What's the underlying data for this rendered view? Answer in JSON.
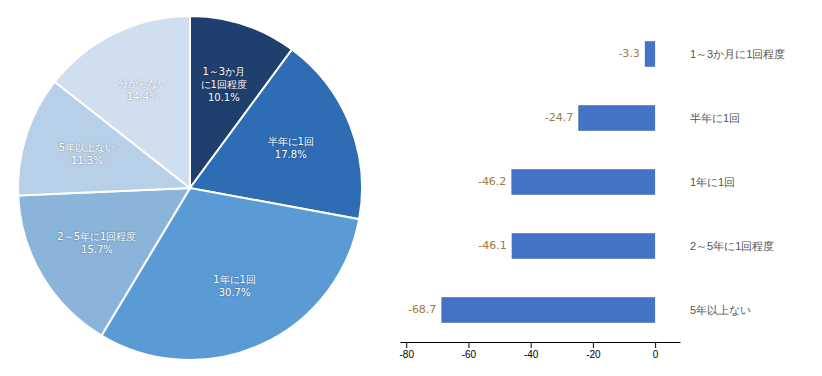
{
  "chart_data": [
    {
      "type": "pie",
      "categories": [
        "1～3か月\nに1回程度",
        "半年に1回",
        "1年に1回",
        "2～5年に1回程度",
        "5年以上ない",
        "分からない"
      ],
      "values": [
        10.1,
        17.8,
        30.7,
        15.7,
        11.3,
        14.4
      ],
      "value_labels": [
        "10.1%",
        "17.8%",
        "30.7%",
        "15.7%",
        "11.3%",
        "14.4%"
      ],
      "colors": [
        "#1f3f6e",
        "#2e6db4",
        "#5b9bd5",
        "#8ab4d9",
        "#b8cfe8",
        "#d0dff0"
      ],
      "data_labels": true
    },
    {
      "type": "bar",
      "orientation": "horizontal",
      "categories": [
        "1～3か月に1回程度",
        "半年に1回",
        "1年に1回",
        "2～5年に1回程度",
        "5年以上ない"
      ],
      "values": [
        -3.3,
        -24.7,
        -46.2,
        -46.1,
        -68.7
      ],
      "color": "#4472c4",
      "xlim": [
        -82,
        8
      ],
      "xticks": [
        -80,
        -60,
        -40,
        -20,
        0
      ],
      "data_labels": true,
      "grid": false
    }
  ]
}
